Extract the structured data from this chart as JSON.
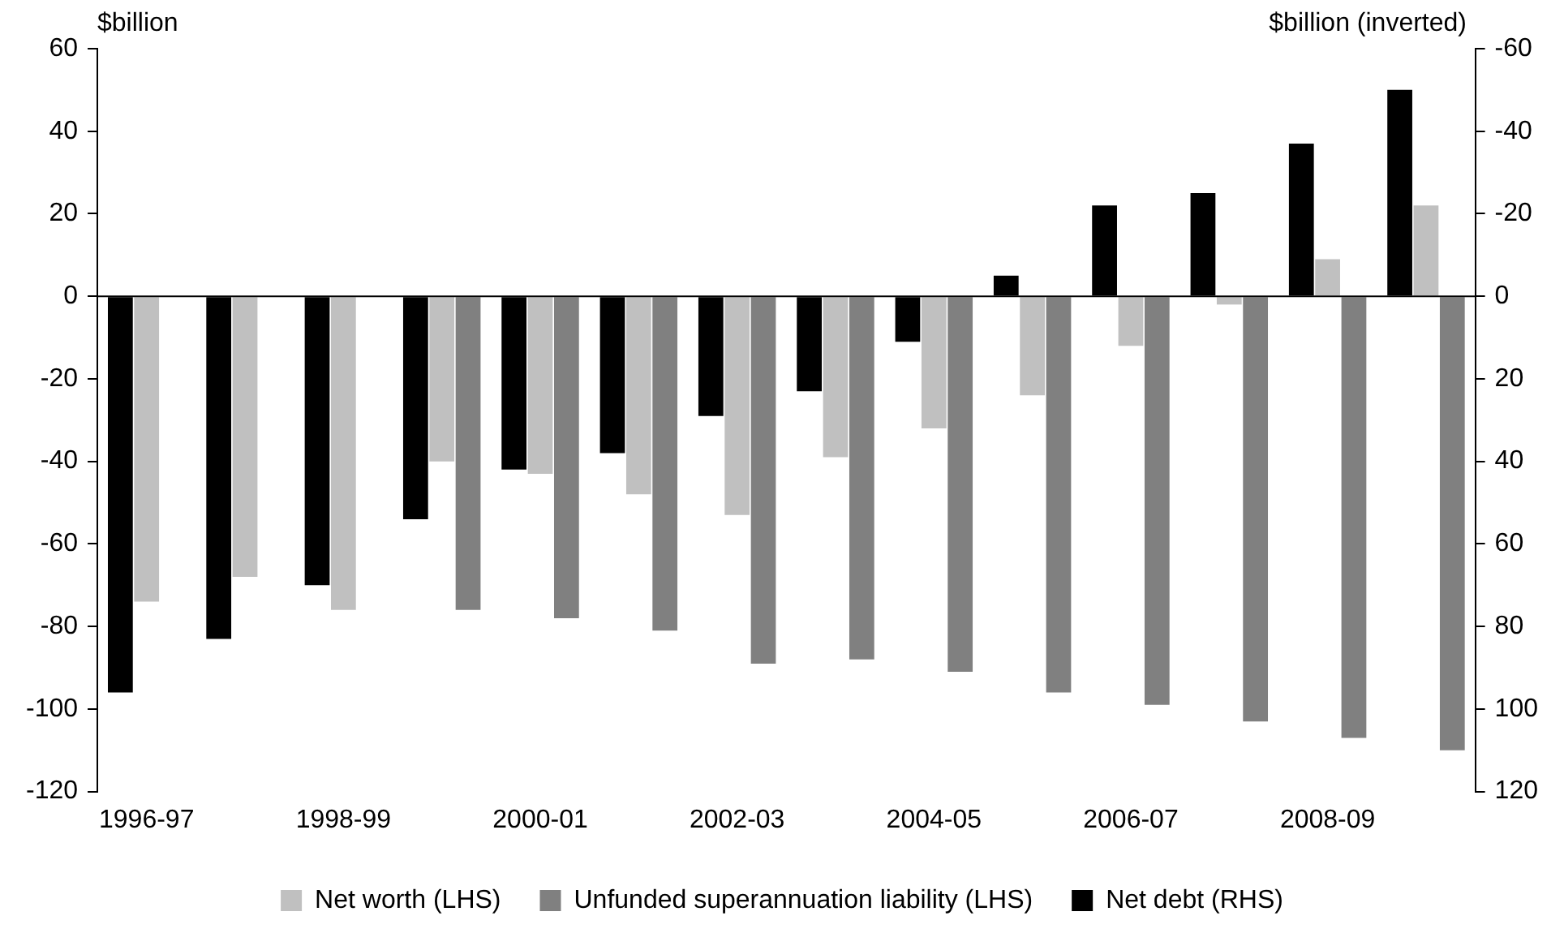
{
  "chart_data": {
    "type": "bar",
    "ylabel": "$billion",
    "y2label": "$billion (inverted)",
    "categories": [
      "1996-97",
      null,
      "1998-99",
      null,
      "2000-01",
      null,
      "2002-03",
      null,
      "2004-05",
      null,
      "2006-07",
      null,
      "2008-09",
      null
    ],
    "series": [
      {
        "name": "Net debt (RHS)",
        "color": "#000000",
        "axis": "y2",
        "values": [
          96,
          83,
          70,
          54,
          42,
          38,
          29,
          23,
          11,
          -5,
          -22,
          -25,
          -37,
          -50
        ]
      },
      {
        "name": "Net worth (LHS)",
        "color": "#c0c0c0",
        "values": [
          -74,
          -68,
          -76,
          -40,
          -43,
          -48,
          -53,
          -39,
          -32,
          -24,
          -12,
          -2,
          9,
          22
        ]
      },
      {
        "name": "Unfunded superannuation liability (LHS)",
        "color": "#808080",
        "values": [
          null,
          null,
          null,
          -76,
          -78,
          -81,
          -89,
          -88,
          -91,
          -96,
          -99,
          -103,
          -107,
          -110
        ]
      }
    ],
    "ylim": [
      -120,
      60
    ],
    "yticks": [
      -120,
      -100,
      -80,
      -60,
      -40,
      -20,
      0,
      20,
      40,
      60
    ],
    "y2lim": [
      120,
      -60
    ],
    "y2ticks": [
      120,
      100,
      80,
      60,
      40,
      20,
      0,
      -20,
      -40,
      -60
    ],
    "legend": "bottom"
  }
}
